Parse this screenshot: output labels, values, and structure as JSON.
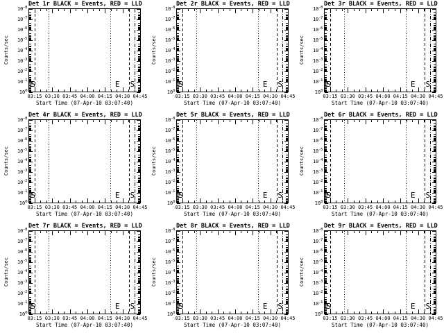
{
  "chart_data": {
    "type": "line",
    "grid_layout": "3x3 small multiples",
    "background": "#ffffff",
    "foreground": "#000000",
    "panels": [
      {
        "id": "det-1r",
        "title": "Det 1r BLACK = Events, RED = LLD"
      },
      {
        "id": "det-2r",
        "title": "Det 2r BLACK = Events, RED = LLD"
      },
      {
        "id": "det-3r",
        "title": "Det 3r BLACK = Events, RED = LLD"
      },
      {
        "id": "det-4r",
        "title": "Det 4r BLACK = Events, RED = LLD"
      },
      {
        "id": "det-5r",
        "title": "Det 5r BLACK = Events, RED = LLD"
      },
      {
        "id": "det-6r",
        "title": "Det 6r BLACK = Events, RED = LLD"
      },
      {
        "id": "det-7r",
        "title": "Det 7r BLACK = Events, RED = LLD"
      },
      {
        "id": "det-8r",
        "title": "Det 8r BLACK = Events, RED = LLD"
      },
      {
        "id": "det-9r",
        "title": "Det 9r BLACK = Events, RED = LLD"
      }
    ],
    "shared": {
      "xlabel": "Start Time (07-Apr-10 03:07:40)",
      "ylabel": "Counts/sec",
      "x_tick_labels": [
        "03:15",
        "03:30",
        "03:45",
        "04:00",
        "04:15",
        "04:30",
        "04:45"
      ],
      "y_scale": "log",
      "y_tick_exponents_top_to_bottom": [
        -8,
        -7,
        -6,
        -5,
        -4,
        -3,
        -2,
        -1,
        0
      ],
      "y_tick_base": "10",
      "series": [
        {
          "name": "Events",
          "color": "#000000",
          "values": []
        },
        {
          "name": "LLD",
          "color": "#ff0000",
          "values": []
        }
      ],
      "series_note": "no data curves plotted; all nine panels empty except flag overlay lines and letters",
      "flag_vlines": [
        {
          "style": "dashed",
          "frac": 0.059,
          "approx_time": "03:15"
        },
        {
          "style": "dotted",
          "frac": 0.18,
          "approx_time": "03:27"
        },
        {
          "style": "dotted",
          "frac": 0.736,
          "approx_time": "04:19"
        },
        {
          "style": "dashed",
          "frac": 0.898,
          "approx_time": "04:34"
        },
        {
          "style": "dash-dot",
          "frac": 0.953,
          "approx_time": "04:39"
        }
      ],
      "flag_letters": [
        {
          "text": "E",
          "frac": 0.003
        },
        {
          "text": "S",
          "frac": 0.022
        },
        {
          "text": "E",
          "frac": 0.776
        },
        {
          "text": "S",
          "frac": 0.91
        }
      ]
    }
  }
}
